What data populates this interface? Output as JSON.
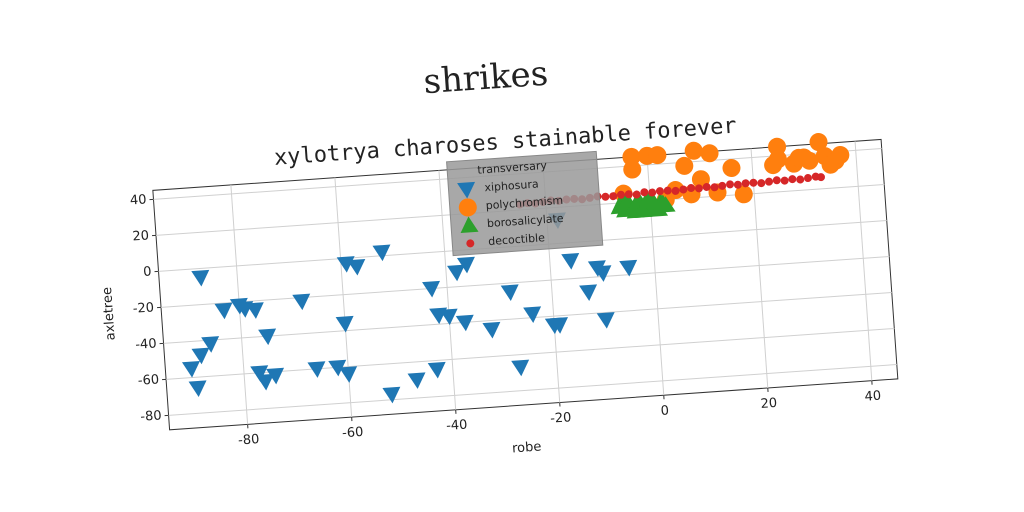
{
  "chart_data": {
    "type": "scatter",
    "suptitle": "shrikes",
    "title": "xylotrya charoses stainable forever",
    "xlabel": "robe",
    "ylabel": "axletree",
    "legend_title": "transversary",
    "xlim": [
      -95,
      45
    ],
    "ylim": [
      -88,
      45
    ],
    "xticks": [
      -80,
      -60,
      -40,
      -20,
      0,
      20,
      40
    ],
    "yticks": [
      -80,
      -60,
      -40,
      -20,
      0,
      20,
      40
    ],
    "grid": true,
    "series": [
      {
        "name": "xiphosura",
        "color": "#1f77b4",
        "marker": "triangle-down",
        "x": [
          -90,
          -89,
          -88,
          -86,
          -87,
          -83,
          -79,
          -77,
          -75,
          -77,
          -76,
          -74,
          -68,
          -66,
          -62,
          -60,
          -60,
          -59,
          -57,
          -52,
          -52,
          -47,
          -43,
          -43,
          -40,
          -42,
          -38,
          -36,
          -37,
          -32,
          -28,
          -27,
          -24,
          -20,
          -19,
          -18,
          -16,
          -13,
          -11,
          -10,
          -10,
          -5,
          -80
        ],
        "values": [
          -55,
          -66,
          -48,
          -42,
          -5,
          -24,
          -24,
          -25,
          -40,
          -60,
          -65,
          -62,
          -22,
          -60,
          -60,
          -64,
          -36,
          -3,
          -5,
          2,
          -77,
          -70,
          -65,
          -20,
          -36,
          -35,
          -12,
          -8,
          -40,
          -45,
          -25,
          -67,
          -38,
          -45,
          -45,
          13,
          -10,
          -28,
          -15,
          -18,
          -44,
          -16,
          -22
        ]
      },
      {
        "name": "polychromism",
        "color": "#ff7f0e",
        "marker": "circle",
        "x": [
          -5,
          -3,
          -3,
          0,
          2,
          3,
          7,
          9,
          10,
          12,
          13,
          16,
          18,
          24,
          25,
          25,
          28,
          29,
          30,
          31,
          33,
          34,
          35,
          36,
          37,
          8,
          5
        ],
        "values": [
          25,
          38,
          45,
          45,
          45,
          20,
          38,
          46,
          30,
          44,
          22,
          35,
          20,
          35,
          45,
          38,
          35,
          38,
          38,
          36,
          46,
          38,
          33,
          35,
          38,
          22,
          25
        ]
      },
      {
        "name": "borosalicylate",
        "color": "#2ca02c",
        "marker": "triangle-up",
        "x": [
          -6,
          -5,
          -4,
          -3,
          -2,
          -1,
          0,
          1,
          2,
          3,
          -5.5,
          -4.5,
          -3.5,
          -2.5,
          -1.5,
          -0.5,
          0.5,
          1.5,
          2.5
        ],
        "values": [
          18,
          16,
          19,
          15,
          20,
          17,
          18,
          16,
          19,
          17,
          20,
          21,
          16,
          20,
          15,
          21,
          20,
          15,
          18
        ]
      },
      {
        "name": "decoctible",
        "color": "#d62728",
        "marker": "dot",
        "x": [
          -25,
          -23.5,
          -22,
          -20.5,
          -19,
          -17.5,
          -16,
          -14.5,
          -13,
          -11.5,
          -10,
          -8.5,
          -7,
          -5.5,
          -4,
          -2.5,
          -1,
          0.5,
          2,
          3.5,
          5,
          6.5,
          8,
          9.5,
          11,
          12.5,
          14,
          15.5,
          17,
          18.5,
          20,
          21.5,
          23,
          24.5,
          26,
          27.5,
          29,
          30.5,
          32,
          33
        ],
        "values": [
          23,
          23.5,
          23,
          23.5,
          24,
          23.5,
          24,
          24,
          23.5,
          24,
          24.5,
          24,
          24,
          24.5,
          24.5,
          24,
          25,
          24.5,
          25,
          25,
          24.5,
          25,
          25.5,
          25,
          25.5,
          25,
          25.5,
          26,
          25.5,
          26,
          26,
          25.5,
          26,
          26.5,
          26,
          26.5,
          26,
          26.5,
          27,
          26.5
        ]
      }
    ]
  }
}
